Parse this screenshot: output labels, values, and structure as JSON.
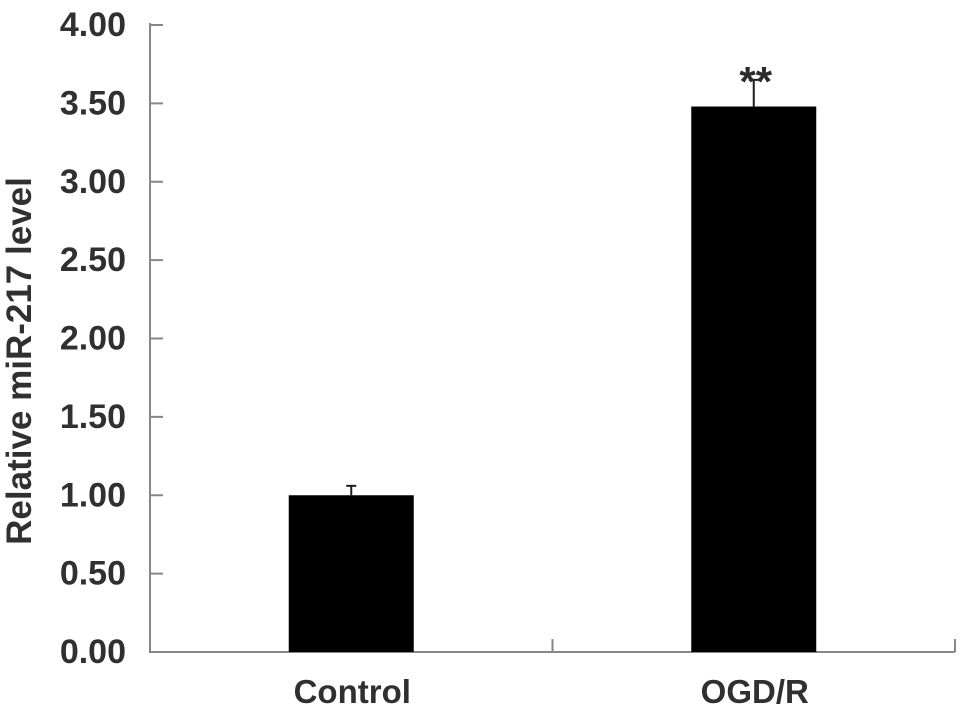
{
  "figure": {
    "background": "#ffffff"
  },
  "chart_data": {
    "type": "bar",
    "title": "",
    "xlabel": "",
    "ylabel": "Relative miR-217 level",
    "categories": [
      "Control",
      "OGD/R"
    ],
    "values": [
      1.0,
      3.48
    ],
    "errors_plus": [
      0.06,
      0.17
    ],
    "annotations": [
      "",
      "**"
    ],
    "ylim": [
      0,
      4
    ],
    "ytick_step": 0.5,
    "ytick_labels": [
      "0.00",
      "0.50",
      "1.00",
      "1.50",
      "2.00",
      "2.50",
      "3.00",
      "3.50",
      "4.00"
    ],
    "grid": false,
    "legend": null,
    "bar_color": "#000000",
    "axis_color": "#878787",
    "error_bar_color": "#1c1c1c",
    "text_color": "#303030",
    "annotation_color": "#2b2b2b"
  }
}
